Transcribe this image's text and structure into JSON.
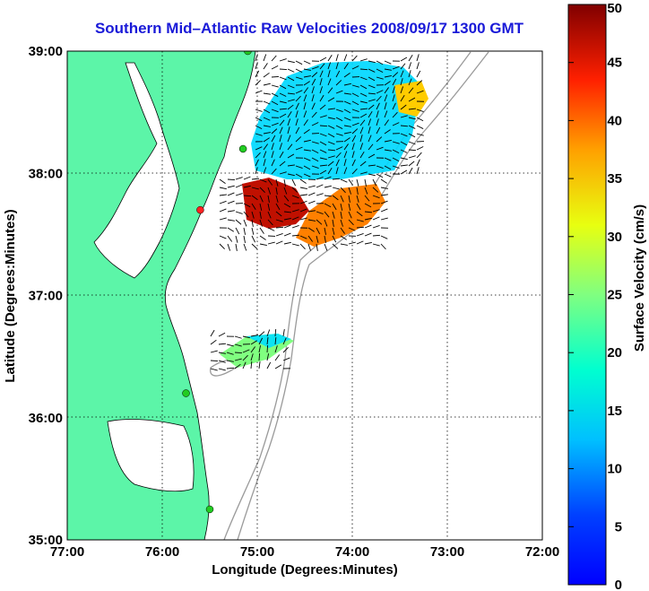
{
  "title": "Southern Mid–Atlantic Raw Velocities 2008/09/17 1300 GMT",
  "xlabel": "Longitude (Degrees:Minutes)",
  "ylabel": "Latitude (Degrees:Minutes)",
  "x_ticks": [
    "77:00",
    "76:00",
    "75:00",
    "74:00",
    "73:00",
    "72:00"
  ],
  "y_ticks": [
    "39:00",
    "38:00",
    "37:00",
    "36:00",
    "35:00"
  ],
  "colorbar": {
    "label": "Surface Velocity (cm/s)",
    "ticks": [
      "0",
      "5",
      "10",
      "15",
      "20",
      "25",
      "30",
      "35",
      "40",
      "45",
      "50"
    ],
    "range": [
      0,
      50
    ],
    "colormap": "jet"
  },
  "map": {
    "lon_range": [
      -77,
      -72
    ],
    "lat_range": [
      35,
      39
    ],
    "land_color": "#5cf5a8",
    "grid": "dotted",
    "stations": [
      {
        "lon": -75.1,
        "lat": 39.0,
        "color": "#22cc22"
      },
      {
        "lon": -75.15,
        "lat": 38.2,
        "color": "#22cc22"
      },
      {
        "lon": -75.6,
        "lat": 37.7,
        "color": "#ff2222"
      },
      {
        "lon": -75.75,
        "lat": 36.2,
        "color": "#22cc22"
      },
      {
        "lon": -75.5,
        "lat": 35.25,
        "color": "#22cc22"
      }
    ]
  }
}
